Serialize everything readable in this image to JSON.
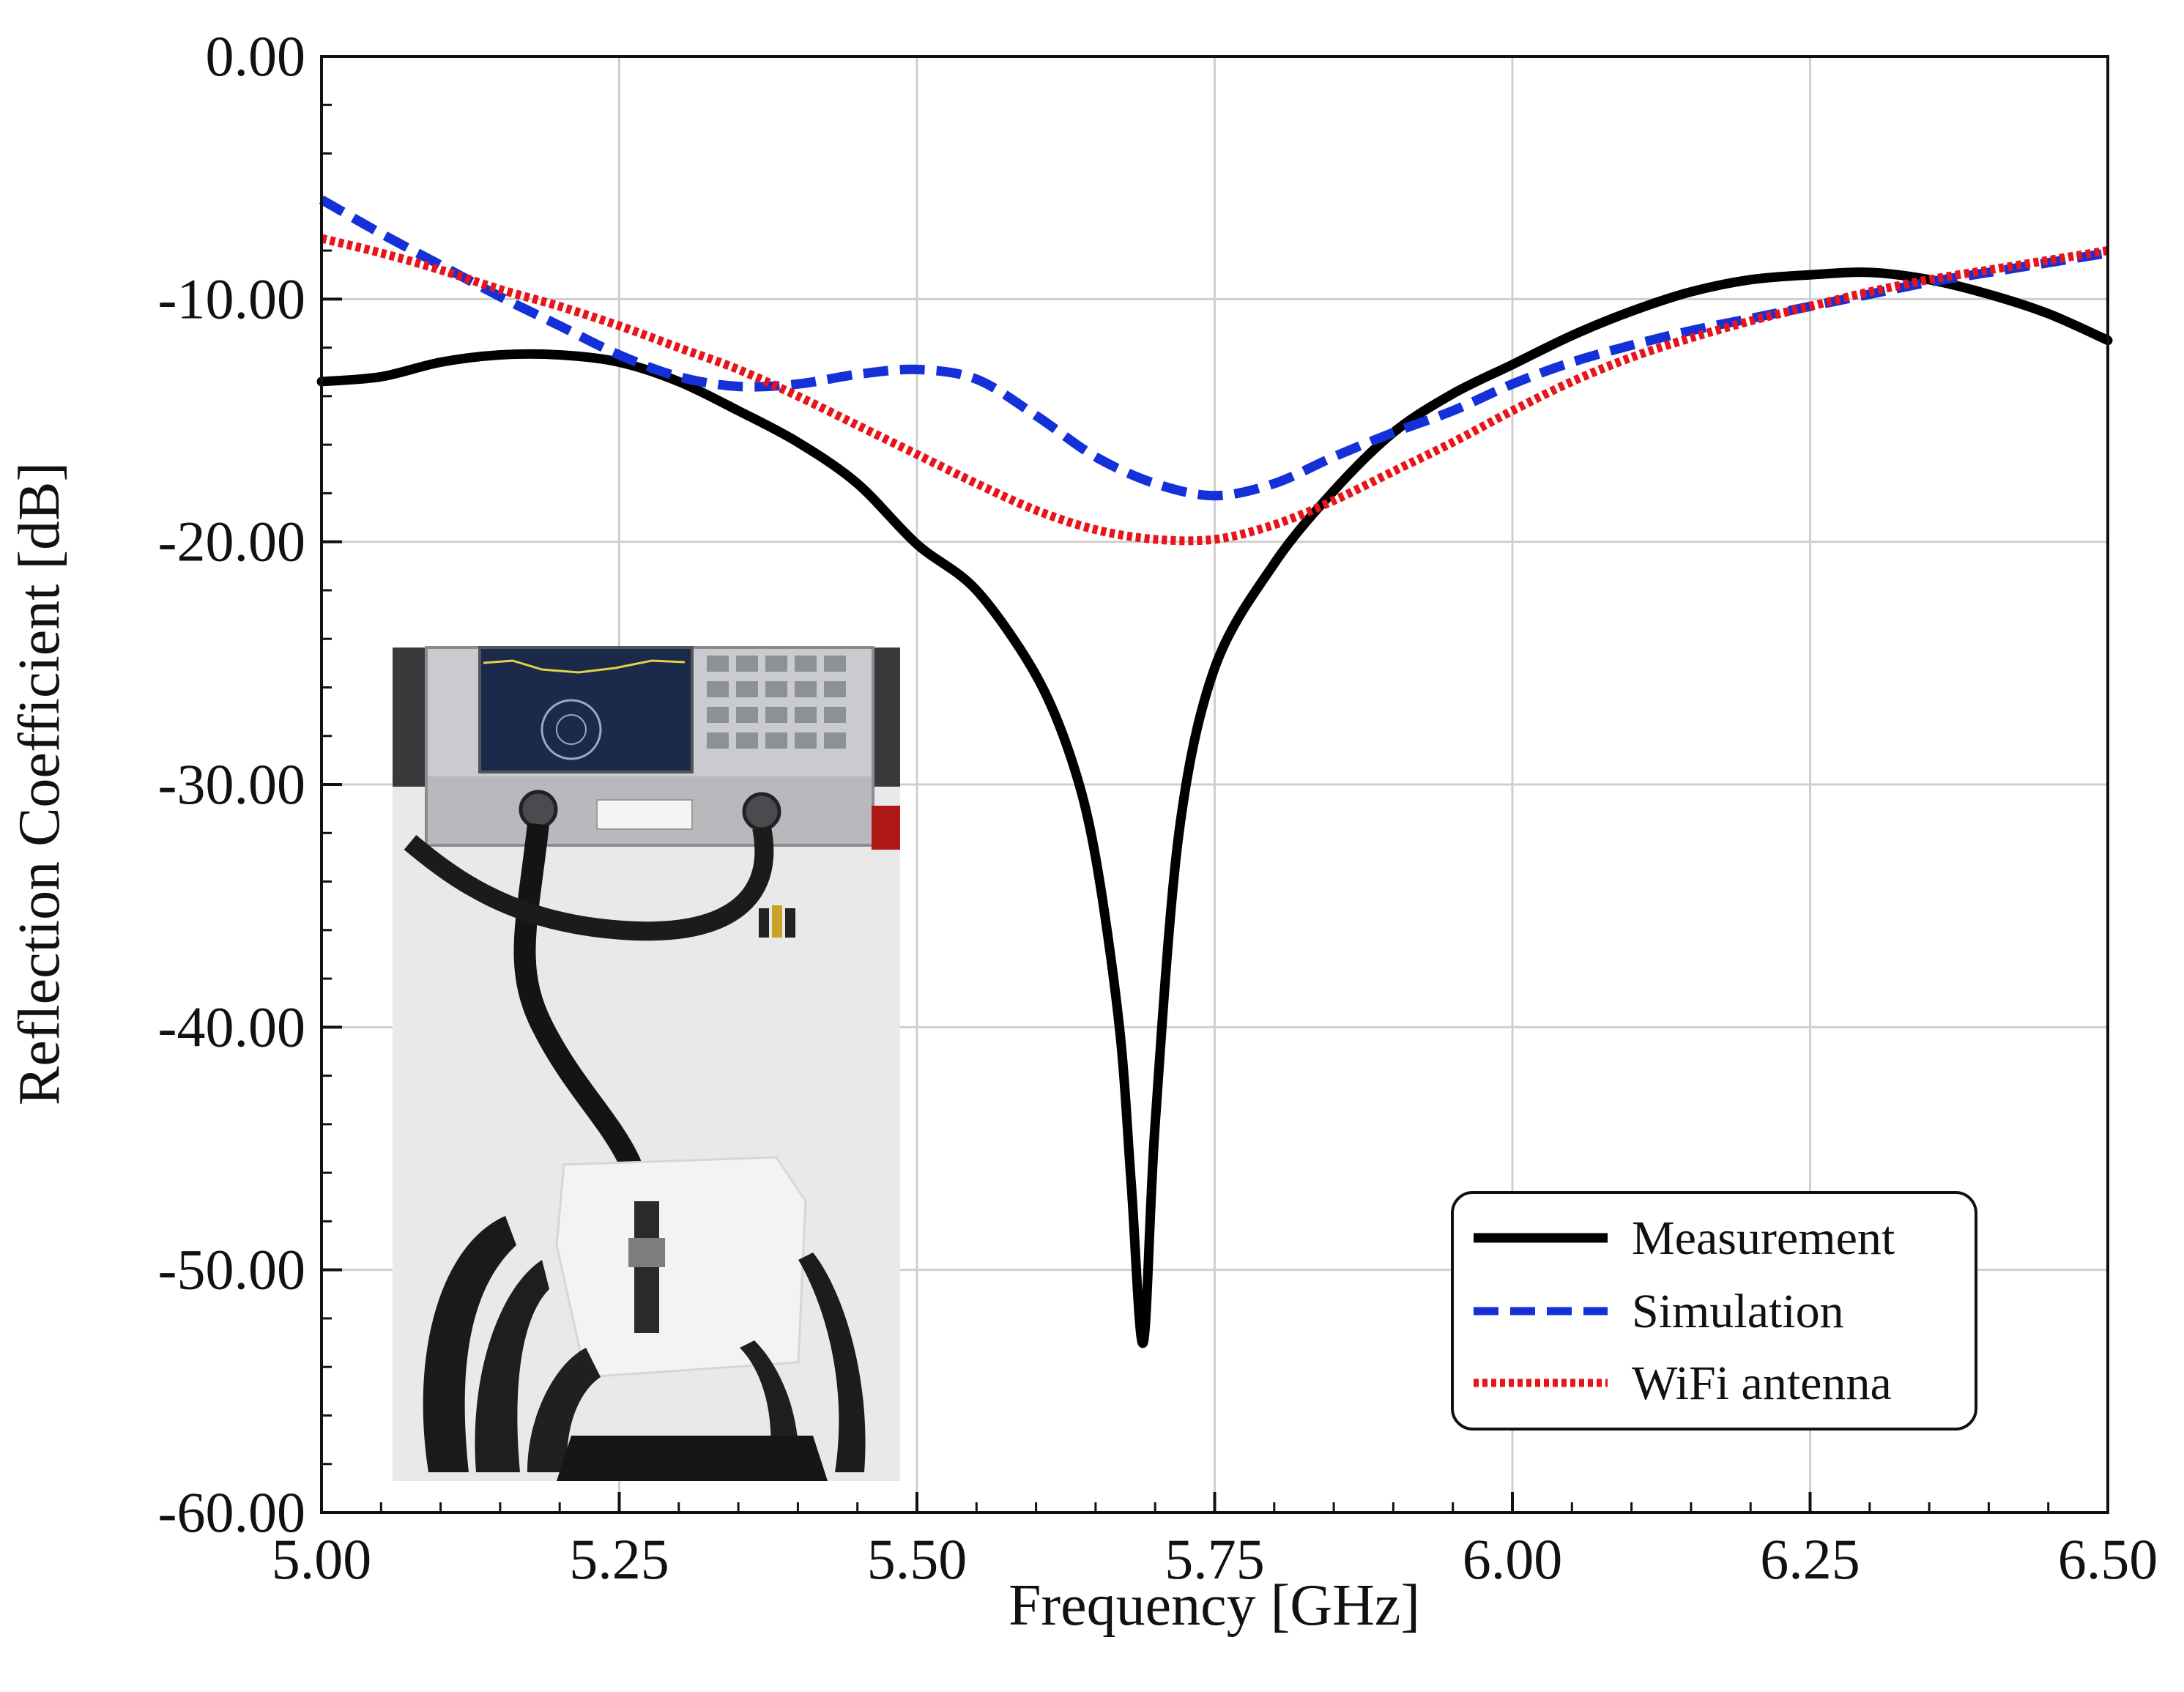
{
  "chart_data": {
    "type": "line",
    "xlabel": "Frequency [GHz]",
    "ylabel": "Reflection Coefficient [dB]",
    "xlim": [
      5.0,
      6.5
    ],
    "ylim": [
      -60,
      0
    ],
    "x_ticks": [
      "5.00",
      "5.25",
      "5.50",
      "5.75",
      "6.00",
      "6.25",
      "6.50"
    ],
    "y_ticks": [
      "0.00",
      "-10.00",
      "-20.00",
      "-30.00",
      "-40.00",
      "-50.00",
      "-60.00"
    ],
    "grid": true,
    "legend_position": "bottom-right",
    "inset": "photo of vector network analyzer connected by cable to antenna under test",
    "series": [
      {
        "name": "Measurement",
        "color": "#000000",
        "style": "solid",
        "x": [
          5.0,
          5.05,
          5.1,
          5.15,
          5.2,
          5.25,
          5.3,
          5.35,
          5.4,
          5.45,
          5.5,
          5.55,
          5.6,
          5.63,
          5.65,
          5.67,
          5.68,
          5.69,
          5.7,
          5.72,
          5.75,
          5.8,
          5.85,
          5.9,
          5.95,
          6.0,
          6.05,
          6.1,
          6.15,
          6.2,
          6.25,
          6.3,
          6.35,
          6.4,
          6.45,
          6.5
        ],
        "values": [
          -13.4,
          -13.2,
          -12.6,
          -12.3,
          -12.3,
          -12.6,
          -13.4,
          -14.6,
          -15.9,
          -17.6,
          -20.1,
          -22.0,
          -25.5,
          -29.0,
          -33.0,
          -40.0,
          -46.5,
          -53.0,
          -44.0,
          -32.0,
          -25.2,
          -20.9,
          -17.9,
          -15.5,
          -13.9,
          -12.7,
          -11.5,
          -10.5,
          -9.7,
          -9.2,
          -9.0,
          -8.9,
          -9.2,
          -9.8,
          -10.6,
          -11.7
        ]
      },
      {
        "name": "Simulation",
        "color": "#1430d8",
        "style": "dashed",
        "x": [
          5.0,
          5.05,
          5.1,
          5.15,
          5.2,
          5.25,
          5.3,
          5.35,
          5.4,
          5.45,
          5.5,
          5.55,
          5.6,
          5.65,
          5.7,
          5.75,
          5.8,
          5.85,
          5.9,
          5.95,
          6.0,
          6.05,
          6.1,
          6.15,
          6.2,
          6.25,
          6.3,
          6.35,
          6.4,
          6.45,
          6.5
        ],
        "values": [
          -5.9,
          -7.3,
          -8.6,
          -9.9,
          -11.1,
          -12.3,
          -13.2,
          -13.6,
          -13.5,
          -13.1,
          -12.9,
          -13.3,
          -14.8,
          -16.5,
          -17.6,
          -18.1,
          -17.6,
          -16.5,
          -15.5,
          -14.6,
          -13.5,
          -12.6,
          -11.9,
          -11.3,
          -10.8,
          -10.3,
          -9.8,
          -9.3,
          -8.9,
          -8.5,
          -8.1
        ]
      },
      {
        "name": "WiFi antenna",
        "color": "#e8141a",
        "style": "dotted",
        "x": [
          5.0,
          5.05,
          5.1,
          5.15,
          5.2,
          5.25,
          5.3,
          5.35,
          5.4,
          5.45,
          5.5,
          5.55,
          5.6,
          5.65,
          5.7,
          5.75,
          5.8,
          5.85,
          5.9,
          5.95,
          6.0,
          6.05,
          6.1,
          6.15,
          6.2,
          6.25,
          6.3,
          6.35,
          6.4,
          6.45,
          6.5
        ],
        "values": [
          -7.5,
          -8.1,
          -8.8,
          -9.6,
          -10.3,
          -11.1,
          -12.0,
          -12.9,
          -14.0,
          -15.2,
          -16.4,
          -17.6,
          -18.7,
          -19.5,
          -19.9,
          -19.9,
          -19.3,
          -18.3,
          -17.1,
          -15.9,
          -14.6,
          -13.4,
          -12.4,
          -11.6,
          -10.9,
          -10.3,
          -9.7,
          -9.2,
          -8.8,
          -8.4,
          -8.0
        ]
      }
    ]
  }
}
